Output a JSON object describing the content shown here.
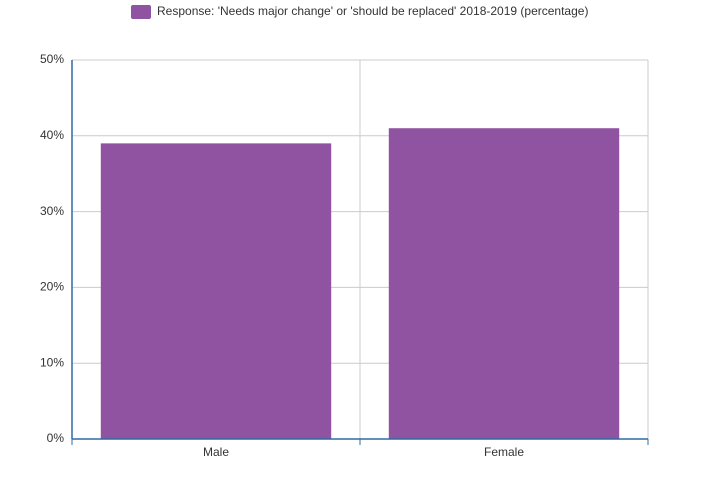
{
  "chart_data": {
    "type": "bar",
    "categories": [
      "Male",
      "Female"
    ],
    "series": [
      {
        "name": "Response: 'Needs major change' or 'should be replaced' 2018-2019 (percentage)",
        "color": "#9053a1",
        "values": [
          39,
          41
        ]
      }
    ],
    "ylim": [
      0,
      50
    ],
    "yticks": [
      {
        "value": 0,
        "label": "0%"
      },
      {
        "value": 10,
        "label": "10%"
      },
      {
        "value": 20,
        "label": "20%"
      },
      {
        "value": 30,
        "label": "30%"
      },
      {
        "value": 40,
        "label": "40%"
      },
      {
        "value": 50,
        "label": "50%"
      }
    ],
    "grid": true,
    "legend": "top"
  }
}
